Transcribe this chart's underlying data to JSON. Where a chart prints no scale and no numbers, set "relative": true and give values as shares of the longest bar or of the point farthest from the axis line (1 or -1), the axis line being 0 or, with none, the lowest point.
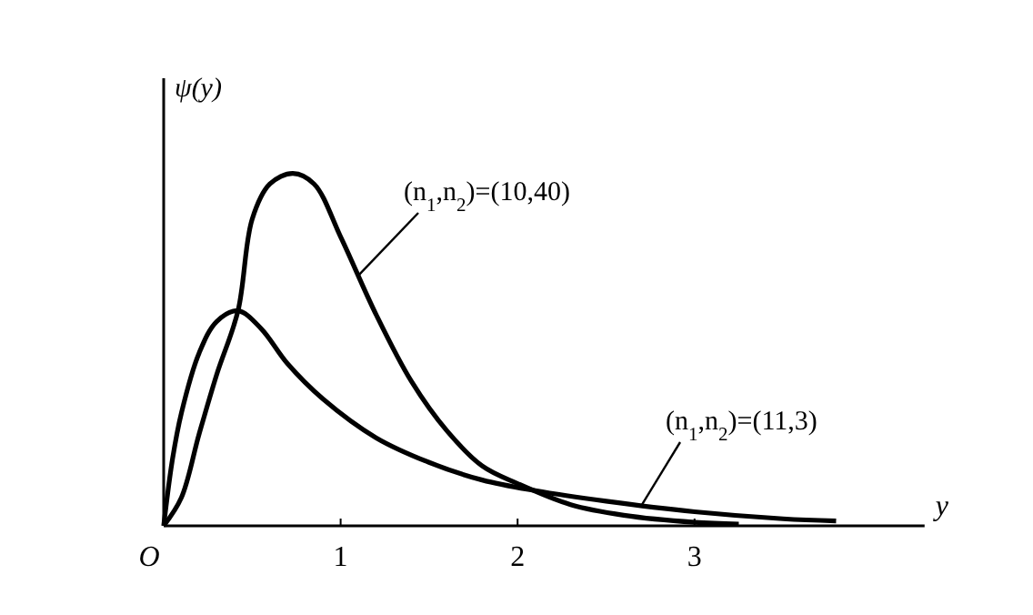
{
  "chart_data": {
    "type": "line",
    "relative": true,
    "xlabel": "y",
    "ylabel": "ψ(y)",
    "xlim": [
      0,
      4.3
    ],
    "xticks": [
      {
        "value": 0,
        "label": "O"
      },
      1,
      2,
      3
    ],
    "line_style": "solid",
    "series": [
      {
        "name": "(n$_{1}$,n$_{2}$)=(10,40)",
        "color": "#000000",
        "x": [
          0,
          0.1,
          0.2,
          0.3,
          0.42,
          0.5,
          0.6,
          0.73,
          0.85,
          1.0,
          1.2,
          1.4,
          1.6,
          1.8,
          2.0,
          2.3,
          2.6,
          3.0,
          3.25
        ],
        "values": [
          0,
          0.08,
          0.26,
          0.43,
          0.61,
          0.87,
          0.97,
          1,
          0.97,
          0.82,
          0.6,
          0.41,
          0.27,
          0.17,
          0.12,
          0.06,
          0.03,
          0.01,
          0.005
        ]
      },
      {
        "name": "(n$_{1}$,n$_{2}$)=(11,3)",
        "color": "#000000",
        "x": [
          0,
          0.05,
          0.1,
          0.2,
          0.3,
          0.42,
          0.55,
          0.7,
          0.9,
          1.2,
          1.5,
          1.8,
          2.1,
          2.5,
          3.0,
          3.5,
          3.8
        ],
        "values": [
          0,
          0.19,
          0.32,
          0.49,
          0.58,
          0.61,
          0.56,
          0.46,
          0.36,
          0.25,
          0.18,
          0.13,
          0.1,
          0.07,
          0.04,
          0.02,
          0.014
        ]
      }
    ]
  }
}
